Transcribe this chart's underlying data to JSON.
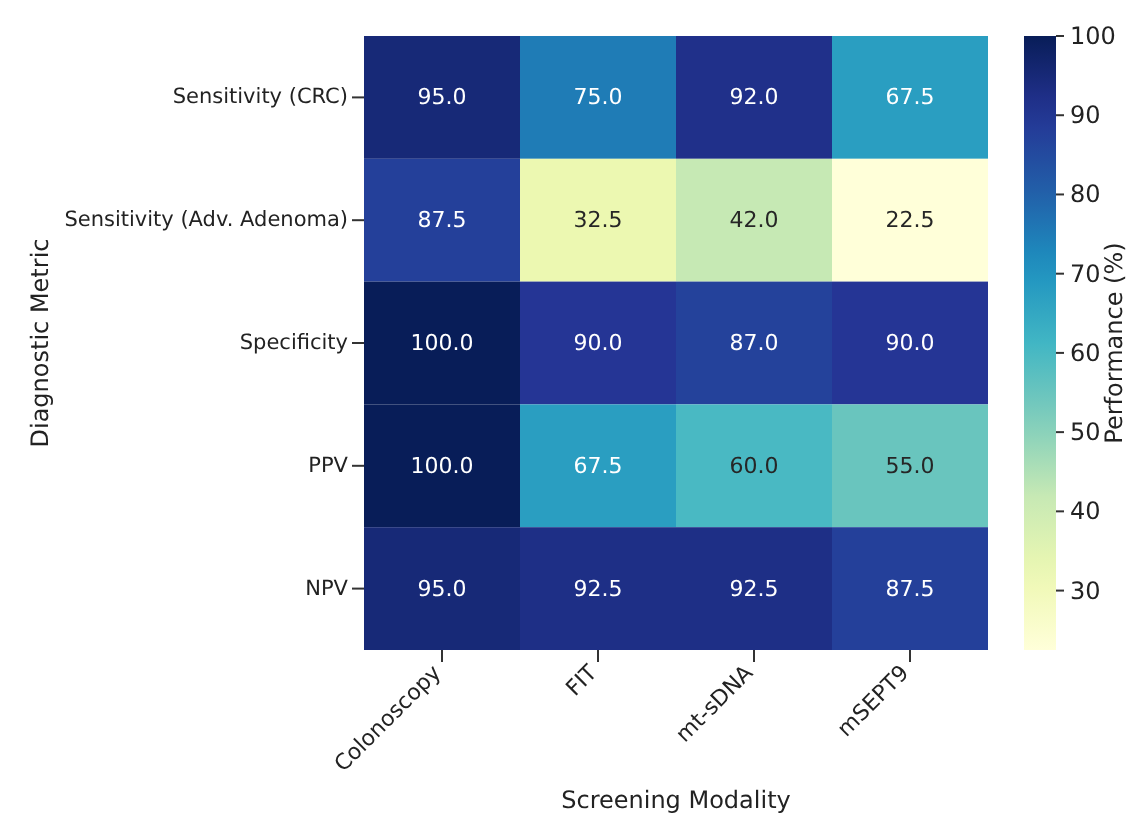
{
  "chart_data": {
    "type": "heatmap",
    "xlabel": "Screening Modality",
    "ylabel": "Diagnostic Metric",
    "clabel": "Performance (%)",
    "categories": [
      "Colonoscopy",
      "FIT",
      "mt-sDNA",
      "mSEPT9"
    ],
    "y_categories": [
      "Sensitivity (CRC)",
      "Sensitivity (Adv. Adenoma)",
      "Specificity",
      "PPV",
      "NPV"
    ],
    "cells": [
      [
        95.0,
        75.0,
        92.0,
        67.5
      ],
      [
        87.5,
        32.5,
        42.0,
        22.5
      ],
      [
        100.0,
        90.0,
        87.0,
        90.0
      ],
      [
        100.0,
        67.5,
        60.0,
        55.0
      ],
      [
        95.0,
        92.5,
        92.5,
        87.5
      ]
    ],
    "cell_labels": [
      [
        "95.0",
        "75.0",
        "92.0",
        "67.5"
      ],
      [
        "87.5",
        "32.5",
        "42.0",
        "22.5"
      ],
      [
        "100.0",
        "90.0",
        "87.0",
        "90.0"
      ],
      [
        "100.0",
        "67.5",
        "60.0",
        "55.0"
      ],
      [
        "95.0",
        "92.5",
        "92.5",
        "87.5"
      ]
    ],
    "clim": [
      22.5,
      100
    ],
    "cticks": [
      30,
      40,
      50,
      60,
      70,
      80,
      90,
      100
    ]
  }
}
